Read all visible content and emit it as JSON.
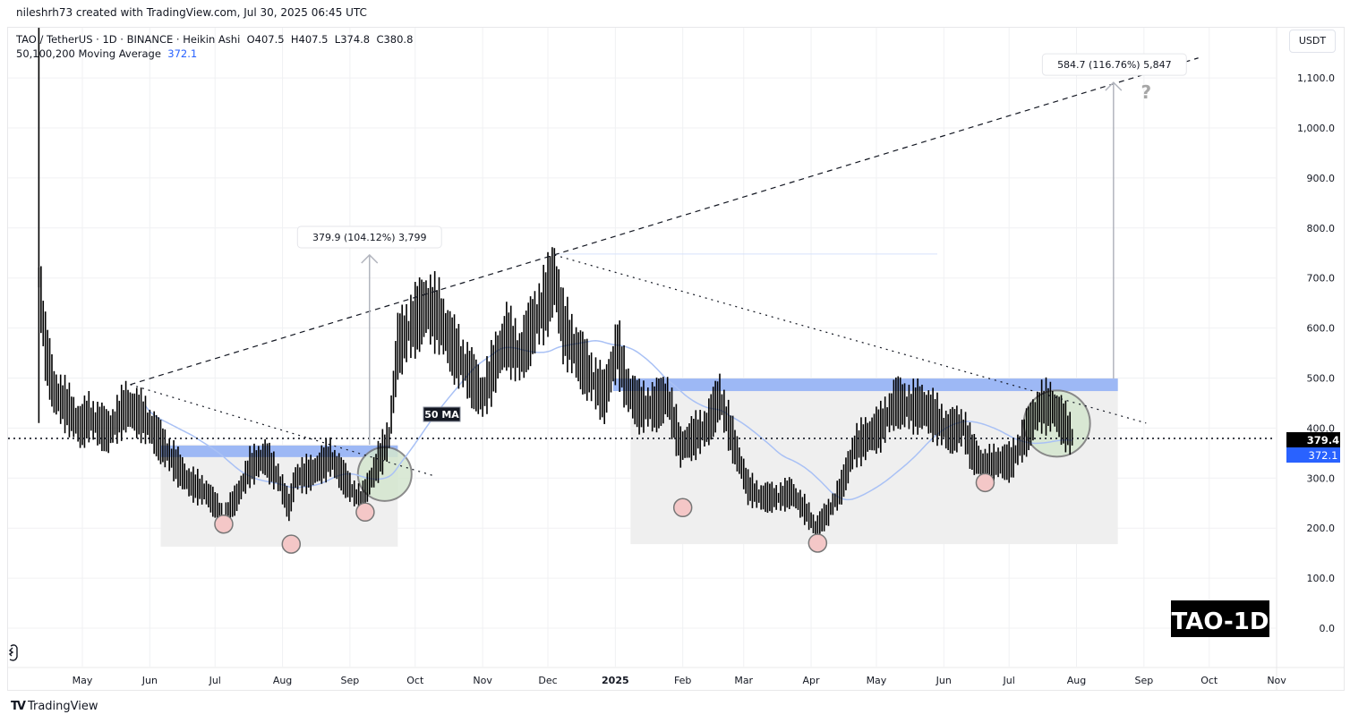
{
  "credit": "nileshrh73 created with TradingView.com, Jul 30, 2025 06:45 UTC",
  "legend": {
    "symbol_line": "TAO / TetherUS · 1D · BINANCE · Heikin Ashi",
    "open": "O407.5",
    "high": "H407.5",
    "low": "L374.8",
    "close": "C380.8",
    "ma_label": "50,100,200 Moving Average",
    "ma_value": "372.1"
  },
  "currency_button": "USDT",
  "footer_brand": "TradingView",
  "watermark": "TAO-1D",
  "ma_tag": "50 MA",
  "colors": {
    "ma": "#a9c1f5",
    "zone": "#82a6f7",
    "box": "#efefef",
    "pink": "#f4c7c7",
    "green": "#d4e6cf",
    "price_tag": "#000000",
    "ma_tag": "#2962ff"
  },
  "chart_data": {
    "type": "candlestick",
    "style": "Heikin Ashi",
    "symbol": "TAO / TetherUS",
    "interval": "1D",
    "exchange": "BINANCE",
    "ylim": [
      -50,
      1250
    ],
    "yticks": [
      "1,100.0",
      "1,000.0",
      "900.0",
      "800.0",
      "700.0",
      "600.0",
      "500.0",
      "400.0",
      "300.0",
      "200.0",
      "100.0",
      "0.0"
    ],
    "ytick_values": [
      1100,
      1000,
      900,
      800,
      700,
      600,
      500,
      400,
      300,
      200,
      100,
      0
    ],
    "xticks": [
      {
        "label": "May",
        "date": "2024-05-01"
      },
      {
        "label": "Jun",
        "date": "2024-06-01"
      },
      {
        "label": "Jul",
        "date": "2024-07-01"
      },
      {
        "label": "Aug",
        "date": "2024-08-01"
      },
      {
        "label": "Sep",
        "date": "2024-09-01"
      },
      {
        "label": "Oct",
        "date": "2024-10-01"
      },
      {
        "label": "Nov",
        "date": "2024-11-01"
      },
      {
        "label": "Dec",
        "date": "2024-12-01"
      },
      {
        "label": "2025",
        "date": "2025-01-01"
      },
      {
        "label": "Feb",
        "date": "2025-02-01"
      },
      {
        "label": "Mar",
        "date": "2025-03-01"
      },
      {
        "label": "Apr",
        "date": "2025-04-01"
      },
      {
        "label": "May",
        "date": "2025-05-01"
      },
      {
        "label": "Jun",
        "date": "2025-06-01"
      },
      {
        "label": "Jul",
        "date": "2025-07-01"
      },
      {
        "label": "Aug",
        "date": "2025-08-01"
      },
      {
        "label": "Sep",
        "date": "2025-09-01"
      },
      {
        "label": "Oct",
        "date": "2025-10-01"
      },
      {
        "label": "Nov",
        "date": "2025-11-01"
      }
    ],
    "grid": true,
    "close_path": [
      [
        "2024-04-11",
        700
      ],
      [
        "2024-04-14",
        560
      ],
      [
        "2024-04-18",
        470
      ],
      [
        "2024-04-24",
        440
      ],
      [
        "2024-04-30",
        400
      ],
      [
        "2024-05-04",
        420
      ],
      [
        "2024-05-13",
        390
      ],
      [
        "2024-05-21",
        440
      ],
      [
        "2024-05-29",
        420
      ],
      [
        "2024-06-06",
        370
      ],
      [
        "2024-06-14",
        320
      ],
      [
        "2024-06-19",
        290
      ],
      [
        "2024-06-27",
        270
      ],
      [
        "2024-07-05",
        220
      ],
      [
        "2024-07-11",
        260
      ],
      [
        "2024-07-17",
        320
      ],
      [
        "2024-07-24",
        340
      ],
      [
        "2024-07-30",
        300
      ],
      [
        "2024-08-04",
        240
      ],
      [
        "2024-08-07",
        300
      ],
      [
        "2024-08-15",
        310
      ],
      [
        "2024-08-23",
        340
      ],
      [
        "2024-09-01",
        280
      ],
      [
        "2024-09-06",
        250
      ],
      [
        "2024-09-13",
        320
      ],
      [
        "2024-09-19",
        380
      ],
      [
        "2024-09-23",
        560
      ],
      [
        "2024-09-29",
        600
      ],
      [
        "2024-10-06",
        640
      ],
      [
        "2024-10-12",
        620
      ],
      [
        "2024-10-18",
        560
      ],
      [
        "2024-10-24",
        520
      ],
      [
        "2024-11-01",
        460
      ],
      [
        "2024-11-08",
        540
      ],
      [
        "2024-11-12",
        580
      ],
      [
        "2024-11-18",
        540
      ],
      [
        "2024-11-24",
        600
      ],
      [
        "2024-11-30",
        650
      ],
      [
        "2024-12-04",
        700
      ],
      [
        "2024-12-08",
        600
      ],
      [
        "2024-12-15",
        540
      ],
      [
        "2024-12-21",
        500
      ],
      [
        "2024-12-27",
        460
      ],
      [
        "2025-01-02",
        560
      ],
      [
        "2025-01-06",
        480
      ],
      [
        "2025-01-12",
        440
      ],
      [
        "2025-01-19",
        440
      ],
      [
        "2025-01-25",
        460
      ],
      [
        "2025-01-31",
        360
      ],
      [
        "2025-02-06",
        380
      ],
      [
        "2025-02-12",
        400
      ],
      [
        "2025-02-18",
        460
      ],
      [
        "2025-02-25",
        360
      ],
      [
        "2025-03-03",
        280
      ],
      [
        "2025-03-09",
        260
      ],
      [
        "2025-03-17",
        260
      ],
      [
        "2025-03-23",
        270
      ],
      [
        "2025-03-30",
        230
      ],
      [
        "2025-04-03",
        200
      ],
      [
        "2025-04-09",
        230
      ],
      [
        "2025-04-15",
        280
      ],
      [
        "2025-04-21",
        360
      ],
      [
        "2025-04-27",
        380
      ],
      [
        "2025-05-03",
        400
      ],
      [
        "2025-05-10",
        450
      ],
      [
        "2025-05-16",
        440
      ],
      [
        "2025-05-22",
        440
      ],
      [
        "2025-05-28",
        420
      ],
      [
        "2025-06-03",
        390
      ],
      [
        "2025-06-10",
        400
      ],
      [
        "2025-06-14",
        350
      ],
      [
        "2025-06-20",
        320
      ],
      [
        "2025-06-26",
        330
      ],
      [
        "2025-07-02",
        330
      ],
      [
        "2025-07-08",
        380
      ],
      [
        "2025-07-15",
        440
      ],
      [
        "2025-07-21",
        440
      ],
      [
        "2025-07-30",
        380.8
      ]
    ],
    "last_price": "379.4",
    "ma50_last": "372.1",
    "drawings": {
      "rising_trendline": [
        [
          "2024-05-23",
          487
        ],
        [
          "2025-09-26",
          1140
        ]
      ],
      "falling_trendline_1": [
        [
          "2024-05-23",
          487
        ],
        [
          "2024-10-10",
          304
        ]
      ],
      "falling_trendline_2": [
        [
          "2024-12-04",
          746
        ],
        [
          "2025-09-02",
          410
        ]
      ],
      "horizontal_level": 379.4,
      "resistance_zones": [
        {
          "from": "2024-06-06",
          "to": "2024-09-23",
          "top": 365,
          "bottom": 342
        },
        {
          "from": "2024-12-31",
          "to": "2025-08-20",
          "top": 499,
          "bottom": 474
        }
      ],
      "range_boxes": [
        {
          "from": "2024-06-06",
          "to": "2024-09-23",
          "top": 367,
          "bottom": 163
        },
        {
          "from": "2025-01-08",
          "to": "2025-08-20",
          "top": 499,
          "bottom": 168
        }
      ],
      "ray_level": {
        "from": "2024-12-04",
        "to": "2025-05-29",
        "price": 748
      },
      "measures": [
        {
          "date": "2024-09-10",
          "from": 367,
          "to": 746,
          "label": "379.9 (104.12%) 3,799"
        },
        {
          "date": "2025-08-18",
          "from": 499,
          "to": 1091,
          "label": "584.7 (116.76%) 5,847"
        }
      ],
      "question_mark": {
        "date": "2025-09-02",
        "price": 1070,
        "text": "?"
      },
      "low_markers": [
        [
          "2024-07-05",
          208
        ],
        [
          "2024-08-05",
          168
        ],
        [
          "2024-09-08",
          232
        ],
        [
          "2025-02-01",
          241
        ],
        [
          "2025-04-04",
          170
        ],
        [
          "2025-06-20",
          291
        ]
      ],
      "breakout_circles": [
        [
          "2024-09-17",
          308
        ],
        [
          "2025-07-23",
          409
        ]
      ]
    }
  }
}
